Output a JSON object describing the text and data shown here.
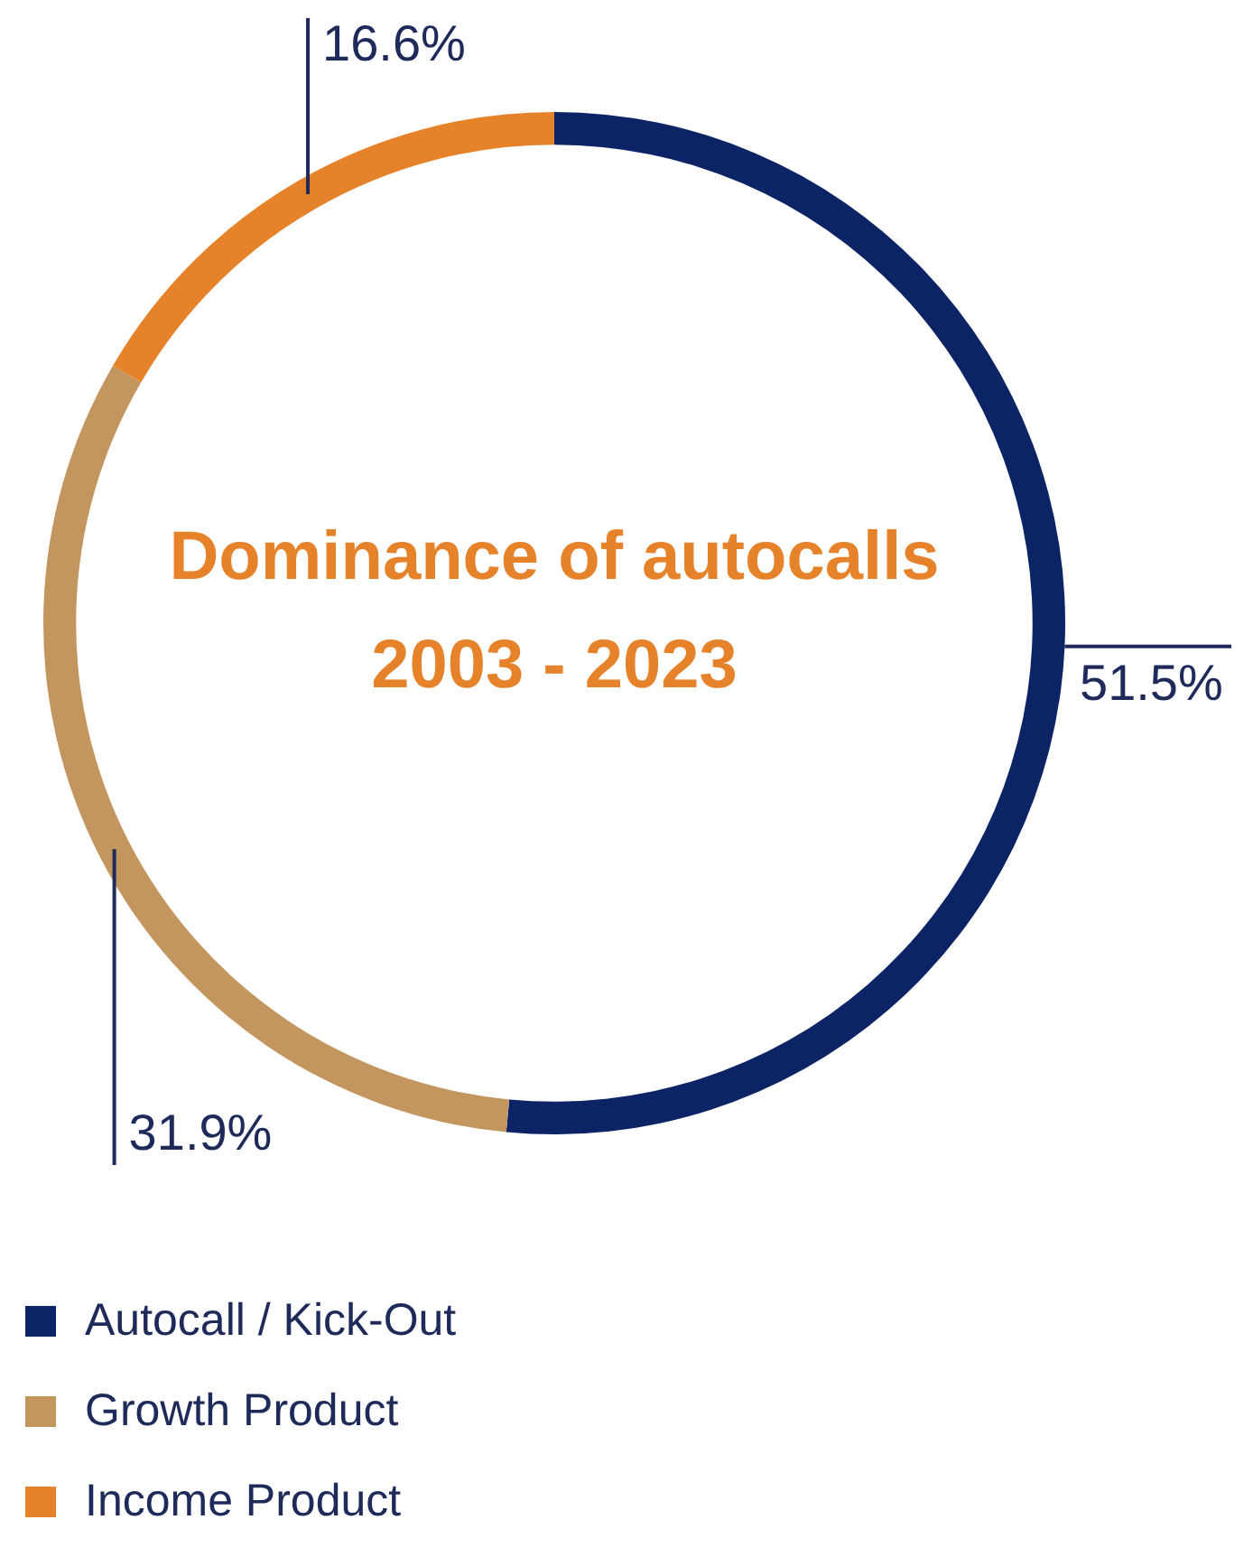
{
  "chart_data": {
    "type": "donut",
    "title": "Dominance of autocalls",
    "subtitle": "2003 - 2023",
    "categories": [
      "Autocall / Kick-Out",
      "Growth Product",
      "Income Product"
    ],
    "values": [
      51.5,
      31.9,
      16.6
    ],
    "colors": [
      "#0c2466",
      "#c4965f",
      "#e5822a"
    ],
    "value_labels": [
      "51.5%",
      "31.9%",
      "16.6%"
    ],
    "legend": "bottom left"
  }
}
